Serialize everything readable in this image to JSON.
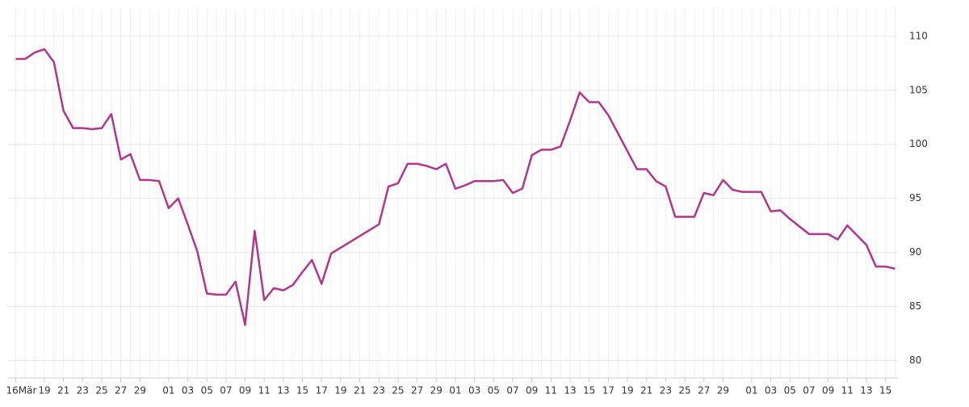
{
  "chart_data": {
    "type": "line",
    "x": [
      0,
      1,
      2,
      3,
      4,
      5,
      6,
      7,
      8,
      9,
      10,
      11,
      12,
      13,
      14,
      15,
      16,
      17,
      18,
      19,
      20,
      21,
      22,
      23,
      24,
      25,
      26,
      27,
      28,
      29,
      30,
      31,
      32,
      33,
      38,
      39,
      40,
      41,
      42,
      43,
      44,
      45,
      46,
      47,
      48,
      49,
      50,
      51,
      52,
      53,
      54,
      55,
      56,
      57,
      58,
      59,
      60,
      61,
      62,
      65,
      66,
      67,
      68,
      69,
      70,
      71,
      72,
      73,
      74,
      75,
      76,
      77,
      78,
      79,
      80,
      81,
      82,
      83,
      84,
      85,
      86,
      87,
      88,
      89,
      90,
      91,
      92
    ],
    "series": [
      {
        "color": "#b0368e",
        "values": [
          107.9,
          107.9,
          108.5,
          108.8,
          107.6,
          103.1,
          101.5,
          101.5,
          101.4,
          101.5,
          102.8,
          98.6,
          99.1,
          96.7,
          96.7,
          96.6,
          94.1,
          95.0,
          92.6,
          90.1,
          86.2,
          86.1,
          86.1,
          87.3,
          83.3,
          92.0,
          85.6,
          86.7,
          86.5,
          87.0,
          88.2,
          89.3,
          87.1,
          89.9,
          92.6,
          96.1,
          96.4,
          98.2,
          98.2,
          98.0,
          97.7,
          98.2,
          95.9,
          96.2,
          96.6,
          96.6,
          96.6,
          96.7,
          95.5,
          95.9,
          99.0,
          99.5,
          99.5,
          99.8,
          102.2,
          104.8,
          103.9,
          103.9,
          102.7,
          97.7,
          97.7,
          96.6,
          96.1,
          93.3,
          93.3,
          93.3,
          95.5,
          95.3,
          96.7,
          95.8,
          95.6,
          95.6,
          95.6,
          93.8,
          93.9,
          93.1,
          92.4,
          91.7,
          91.7,
          91.7,
          91.2,
          92.5,
          91.6,
          90.7,
          88.7,
          88.7,
          88.5
        ]
      }
    ],
    "xlim": [
      -0.8,
      92.3
    ],
    "xticks": [
      {
        "value": 0,
        "label": "16Mär"
      },
      {
        "value": 3,
        "label": "19"
      },
      {
        "value": 5,
        "label": "21"
      },
      {
        "value": 7,
        "label": "23"
      },
      {
        "value": 9,
        "label": "25"
      },
      {
        "value": 11,
        "label": "27"
      },
      {
        "value": 13,
        "label": "29"
      },
      {
        "value": 16,
        "label": "01"
      },
      {
        "value": 18,
        "label": "03"
      },
      {
        "value": 20,
        "label": "05"
      },
      {
        "value": 22,
        "label": "07"
      },
      {
        "value": 24,
        "label": "09"
      },
      {
        "value": 26,
        "label": "11"
      },
      {
        "value": 28,
        "label": "13"
      },
      {
        "value": 30,
        "label": "15"
      },
      {
        "value": 32,
        "label": "17"
      },
      {
        "value": 34,
        "label": "19"
      },
      {
        "value": 36,
        "label": "21"
      },
      {
        "value": 38,
        "label": "23"
      },
      {
        "value": 40,
        "label": "25"
      },
      {
        "value": 42,
        "label": "27"
      },
      {
        "value": 44,
        "label": "29"
      },
      {
        "value": 46,
        "label": "01"
      },
      {
        "value": 48,
        "label": "03"
      },
      {
        "value": 50,
        "label": "05"
      },
      {
        "value": 52,
        "label": "07"
      },
      {
        "value": 54,
        "label": "09"
      },
      {
        "value": 56,
        "label": "11"
      },
      {
        "value": 58,
        "label": "13"
      },
      {
        "value": 60,
        "label": "15"
      },
      {
        "value": 62,
        "label": "17"
      },
      {
        "value": 64,
        "label": "19"
      },
      {
        "value": 66,
        "label": "21"
      },
      {
        "value": 68,
        "label": "23"
      },
      {
        "value": 70,
        "label": "25"
      },
      {
        "value": 72,
        "label": "27"
      },
      {
        "value": 74,
        "label": "29"
      },
      {
        "value": 77,
        "label": "01"
      },
      {
        "value": 79,
        "label": "03"
      },
      {
        "value": 81,
        "label": "05"
      },
      {
        "value": 83,
        "label": "07"
      },
      {
        "value": 85,
        "label": "09"
      },
      {
        "value": 87,
        "label": "11"
      },
      {
        "value": 89,
        "label": "13"
      },
      {
        "value": 91,
        "label": "15"
      }
    ],
    "ylim": [
      78.4,
      112.6
    ],
    "yticks": [
      80,
      85,
      90,
      95,
      100,
      105,
      110
    ],
    "grid": true
  }
}
